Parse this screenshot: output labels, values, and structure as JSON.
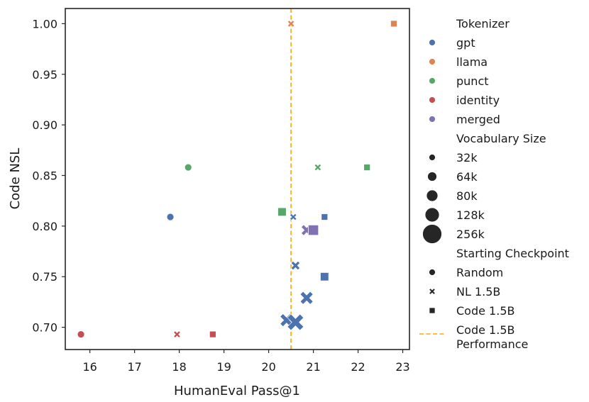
{
  "chart_data": {
    "type": "scatter",
    "xlabel": "HumanEval Pass@1",
    "ylabel": "Code NSL",
    "xlim": [
      15.45,
      23.15
    ],
    "ylim": [
      0.678,
      1.015
    ],
    "xticks": [
      "16",
      "17",
      "18",
      "19",
      "20",
      "21",
      "22",
      "23"
    ],
    "yticks": [
      "0.70",
      "0.75",
      "0.80",
      "0.85",
      "0.90",
      "0.95",
      "1.00"
    ],
    "reference_line": {
      "x": 20.5,
      "color": "#FFA500",
      "label_lines": [
        "Code 1.5B",
        "Performance"
      ]
    },
    "hue_title": "Tokenizer",
    "tokenizers": [
      {
        "name": "gpt",
        "color": "#4C72B0"
      },
      {
        "name": "llama",
        "color": "#DD8452"
      },
      {
        "name": "punct",
        "color": "#55A868"
      },
      {
        "name": "identity",
        "color": "#C44E52"
      },
      {
        "name": "merged",
        "color": "#8172B3"
      }
    ],
    "size_title": "Vocabulary Size",
    "sizes": [
      "32k",
      "64k",
      "80k",
      "128k",
      "256k"
    ],
    "style_title": "Starting Checkpoint",
    "checkpoints": [
      {
        "name": "Random",
        "marker": "circle"
      },
      {
        "name": "NL 1.5B",
        "marker": "x"
      },
      {
        "name": "Code 1.5B",
        "marker": "square"
      }
    ],
    "points": [
      {
        "x": 20.5,
        "y": 1.0,
        "tokenizer": "llama",
        "checkpoint": "NL 1.5B",
        "size": "32k"
      },
      {
        "x": 22.8,
        "y": 1.0,
        "tokenizer": "llama",
        "checkpoint": "Code 1.5B",
        "size": "32k"
      },
      {
        "x": 18.2,
        "y": 0.858,
        "tokenizer": "punct",
        "checkpoint": "Random",
        "size": "32k"
      },
      {
        "x": 21.1,
        "y": 0.858,
        "tokenizer": "punct",
        "checkpoint": "NL 1.5B",
        "size": "32k"
      },
      {
        "x": 22.2,
        "y": 0.858,
        "tokenizer": "punct",
        "checkpoint": "Code 1.5B",
        "size": "32k"
      },
      {
        "x": 20.3,
        "y": 0.814,
        "tokenizer": "punct",
        "checkpoint": "Code 1.5B",
        "size": "64k"
      },
      {
        "x": 17.8,
        "y": 0.809,
        "tokenizer": "gpt",
        "checkpoint": "Random",
        "size": "32k"
      },
      {
        "x": 20.55,
        "y": 0.809,
        "tokenizer": "gpt",
        "checkpoint": "NL 1.5B",
        "size": "32k"
      },
      {
        "x": 21.25,
        "y": 0.809,
        "tokenizer": "gpt",
        "checkpoint": "Code 1.5B",
        "size": "32k"
      },
      {
        "x": 20.85,
        "y": 0.796,
        "tokenizer": "merged",
        "checkpoint": "NL 1.5B",
        "size": "80k"
      },
      {
        "x": 21.0,
        "y": 0.796,
        "tokenizer": "merged",
        "checkpoint": "Code 1.5B",
        "size": "80k"
      },
      {
        "x": 20.6,
        "y": 0.761,
        "tokenizer": "gpt",
        "checkpoint": "NL 1.5B",
        "size": "64k"
      },
      {
        "x": 21.25,
        "y": 0.75,
        "tokenizer": "gpt",
        "checkpoint": "Code 1.5B",
        "size": "64k"
      },
      {
        "x": 20.85,
        "y": 0.729,
        "tokenizer": "gpt",
        "checkpoint": "NL 1.5B",
        "size": "128k"
      },
      {
        "x": 20.4,
        "y": 0.707,
        "tokenizer": "gpt",
        "checkpoint": "NL 1.5B",
        "size": "128k"
      },
      {
        "x": 20.6,
        "y": 0.705,
        "tokenizer": "gpt",
        "checkpoint": "NL 1.5B",
        "size": "256k"
      },
      {
        "x": 15.8,
        "y": 0.693,
        "tokenizer": "identity",
        "checkpoint": "Random",
        "size": "32k"
      },
      {
        "x": 17.95,
        "y": 0.693,
        "tokenizer": "identity",
        "checkpoint": "NL 1.5B",
        "size": "32k"
      },
      {
        "x": 18.75,
        "y": 0.693,
        "tokenizer": "identity",
        "checkpoint": "Code 1.5B",
        "size": "32k"
      }
    ]
  }
}
